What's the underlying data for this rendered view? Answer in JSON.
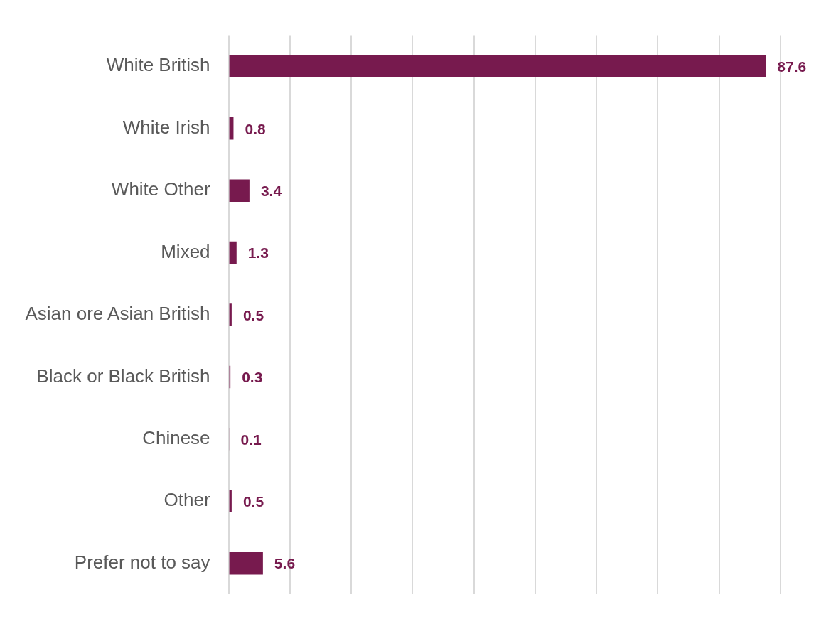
{
  "chart_data": {
    "type": "bar",
    "orientation": "horizontal",
    "categories": [
      "White British",
      "White Irish",
      "White Other",
      "Mixed",
      "Asian ore Asian British",
      "Black or Black British",
      "Chinese",
      "Other",
      "Prefer not to say"
    ],
    "values": [
      87.6,
      0.8,
      3.4,
      1.3,
      0.5,
      0.3,
      0.1,
      0.5,
      5.6
    ],
    "color": "#771a4e",
    "xlim": [
      0,
      90
    ],
    "xticks": [
      {
        "value": 0,
        "label": null
      },
      {
        "value": 10,
        "label": null
      },
      {
        "value": 20,
        "label": null
      },
      {
        "value": 30,
        "label": null
      },
      {
        "value": 40,
        "label": null
      },
      {
        "value": 50,
        "label": null
      },
      {
        "value": 60,
        "label": null
      },
      {
        "value": 70,
        "label": null
      },
      {
        "value": 80,
        "label": null
      },
      {
        "value": 90,
        "label": null
      }
    ],
    "tick_labels": "y",
    "grid": "x",
    "data_labels": true,
    "legend": false
  }
}
